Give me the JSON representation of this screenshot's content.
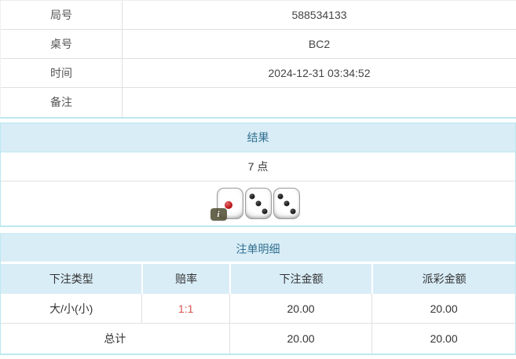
{
  "info_table": {
    "rows": [
      {
        "label": "局号",
        "value": "588534133"
      },
      {
        "label": "桌号",
        "value": "BC2"
      },
      {
        "label": "时间",
        "value": "2024-12-31 03:34:52"
      },
      {
        "label": "备注",
        "value": ""
      }
    ]
  },
  "result_panel": {
    "title": "结果",
    "points": "7 点",
    "dice": [
      {
        "value": 1,
        "pip_color": "red"
      },
      {
        "value": 3,
        "pip_color": "black"
      },
      {
        "value": 3,
        "pip_color": "black"
      }
    ],
    "info_badge": "i"
  },
  "bets_panel": {
    "title": "注单明细",
    "columns": [
      "下注类型",
      "赔率",
      "下注金额",
      "派彩金额"
    ],
    "rows": [
      {
        "type": "大/小(小)",
        "odds": "1:1",
        "bet_amount": "20.00",
        "payout": "20.00"
      }
    ],
    "total": {
      "label": "总计",
      "bet_amount": "20.00",
      "payout": "20.00"
    }
  },
  "colors": {
    "header_bg": "#d9edf7",
    "header_text": "#31708f",
    "panel_border": "#bce8f1",
    "row_border": "#e0e0e0",
    "odds_red": "#d9534f",
    "text": "#333333"
  }
}
